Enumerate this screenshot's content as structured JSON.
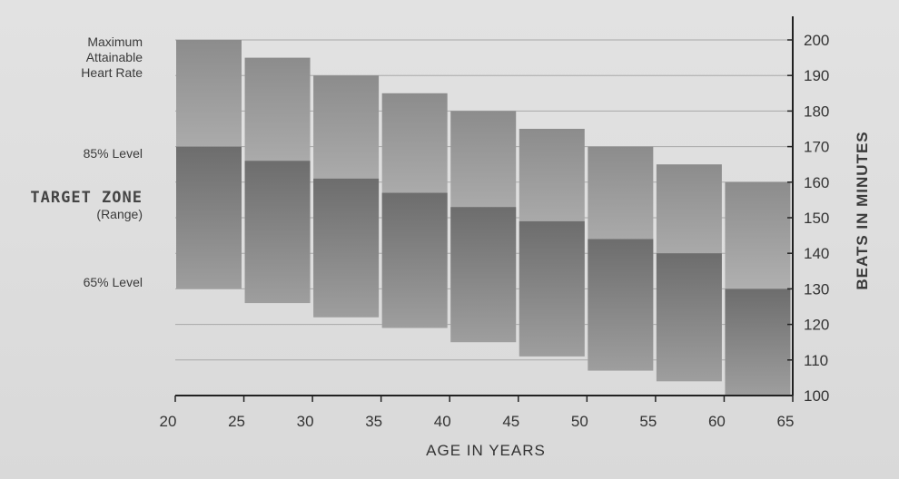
{
  "chart_data": {
    "type": "bar",
    "subtype": "floating-range",
    "xlabel": "AGE IN YEARS",
    "ylabel": "BEATS IN MINUTES",
    "x_ticks": [
      "20",
      "25",
      "30",
      "35",
      "40",
      "45",
      "50",
      "55",
      "60",
      "65"
    ],
    "y_ticks": [
      "100",
      "110",
      "120",
      "130",
      "140",
      "150",
      "160",
      "170",
      "180",
      "190",
      "200"
    ],
    "xlim": [
      20,
      65
    ],
    "ylim": [
      100,
      200
    ],
    "grid": "horizontal",
    "categories": [
      "20",
      "25",
      "30",
      "35",
      "40",
      "45",
      "50",
      "55",
      "60"
    ],
    "series": [
      {
        "values_low": [
          130,
          126,
          122,
          119,
          115,
          111,
          107,
          104,
          100
        ],
        "values_high": [
          200,
          195,
          190,
          185,
          180,
          175,
          170,
          165,
          160
        ]
      },
      {
        "values_low": [
          130,
          126,
          122,
          119,
          115,
          111,
          107,
          104,
          100
        ],
        "values_high": [
          170,
          166,
          161,
          157,
          153,
          149,
          144,
          140,
          130
        ]
      }
    ],
    "colors": {
      "max_top": "#8c8c8c",
      "max_bottom": "#d4d4d4",
      "zone_top": "#6d6d6d",
      "zone_bottom": "#9e9e9e",
      "grid": "#a8a8a8",
      "axis": "#222222"
    }
  },
  "labels": {
    "max_line1": "Maximum",
    "max_line2": "Attainable",
    "max_line3": "Heart Rate",
    "level85": "85% Level",
    "target_zone": "TARGET ZONE",
    "range": "(Range)",
    "level65": "65% Level"
  }
}
